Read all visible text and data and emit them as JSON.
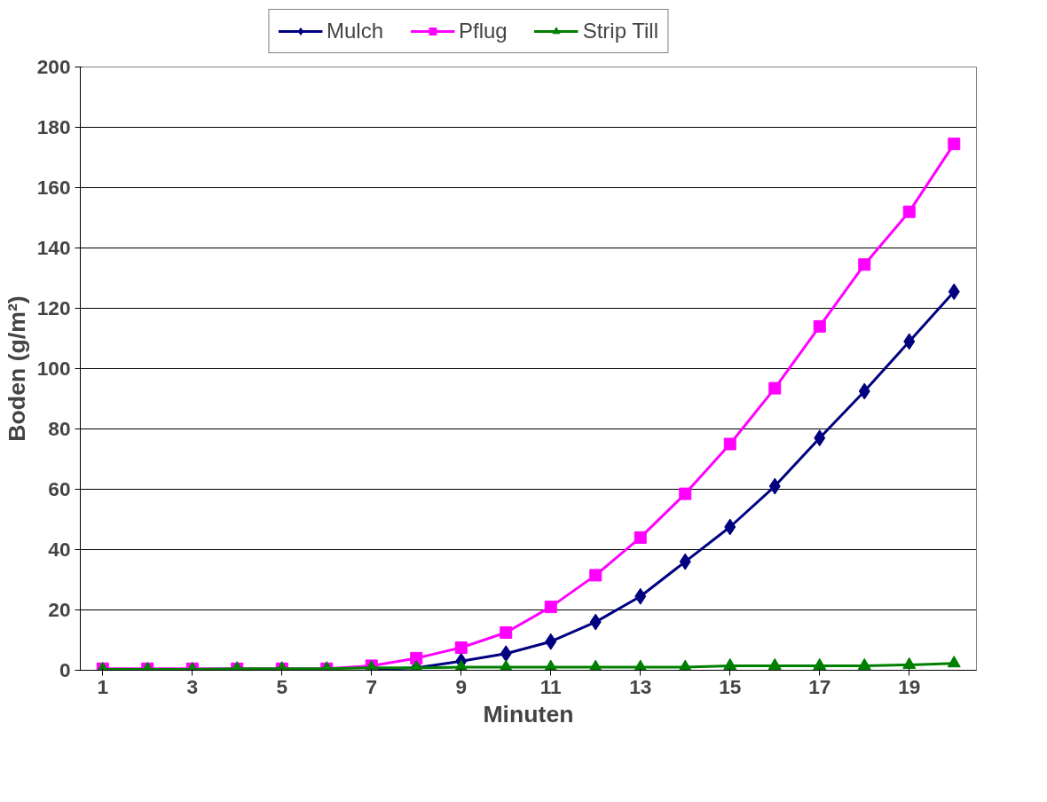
{
  "chart_data": {
    "type": "line",
    "xlabel": "Minuten",
    "ylabel": "Boden (g/m²)",
    "x": [
      1,
      2,
      3,
      4,
      5,
      6,
      7,
      8,
      9,
      10,
      11,
      12,
      13,
      14,
      15,
      16,
      17,
      18,
      19,
      20
    ],
    "xlim": [
      0.5,
      20.5
    ],
    "xticks": [
      1,
      3,
      5,
      7,
      9,
      11,
      13,
      15,
      17,
      19
    ],
    "ylim": [
      0,
      200
    ],
    "yticks": [
      0,
      20,
      40,
      60,
      80,
      100,
      120,
      140,
      160,
      180,
      200
    ],
    "grid": "y",
    "legend": "top",
    "series": [
      {
        "name": "Mulch",
        "color": "#000080",
        "marker": "diamond",
        "x": [
          7,
          8,
          9,
          10,
          11,
          12,
          13,
          14,
          15,
          16,
          17,
          18,
          19,
          20
        ],
        "values": [
          0.3,
          0.8,
          3,
          5.5,
          9.5,
          16,
          24.5,
          36,
          47.5,
          61,
          77,
          92.5,
          109,
          125.5
        ]
      },
      {
        "name": "Pflug",
        "color": "#ff00ff",
        "marker": "square",
        "values": [
          0.5,
          0.5,
          0.5,
          0.5,
          0.5,
          0.5,
          1.5,
          4,
          7.5,
          12.5,
          21,
          31.5,
          44,
          58.5,
          75,
          93.5,
          114,
          134.5,
          152,
          174.5
        ]
      },
      {
        "name": "Strip Till",
        "color": "#008000",
        "marker": "triangle",
        "values": [
          0.3,
          0.3,
          0.3,
          0.5,
          0.5,
          0.5,
          0.8,
          0.8,
          1,
          1,
          1,
          1,
          1,
          1,
          1.5,
          1.5,
          1.5,
          1.5,
          1.8,
          2.3
        ]
      }
    ]
  }
}
